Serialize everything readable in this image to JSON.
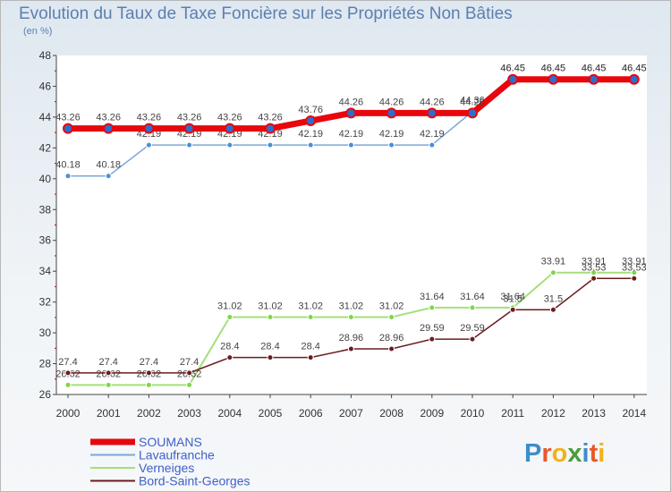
{
  "brand": "Proxiti",
  "chart_data": {
    "type": "line",
    "title": "Evolution du Taux de Taxe Foncière sur les Propriétés Non Bâties",
    "ylabel": "(en %)",
    "xlabel": "",
    "x": [
      "2000",
      "2001",
      "2002",
      "2003",
      "2004",
      "2005",
      "2006",
      "2007",
      "2008",
      "2009",
      "2010",
      "2011",
      "2012",
      "2013",
      "2014"
    ],
    "ylim": [
      26,
      48
    ],
    "yticks": [
      26,
      28,
      30,
      32,
      34,
      36,
      38,
      40,
      42,
      44,
      46,
      48
    ],
    "grid": false,
    "legend_position": "bottom-left",
    "series": [
      {
        "name": "SOUMANS",
        "color": "#e8070d",
        "values": [
          43.26,
          43.26,
          43.26,
          43.26,
          43.26,
          43.26,
          43.76,
          44.26,
          44.26,
          44.26,
          44.26,
          46.45,
          46.45,
          46.45,
          46.45
        ],
        "labels": [
          "43.26",
          "43.26",
          "43.26",
          "43.26",
          "43.26",
          "43.26",
          "43.76",
          "44.26",
          "44.26",
          "44.26",
          "44.26",
          "46.45",
          "46.45",
          "46.45",
          "46.45"
        ]
      },
      {
        "name": "Lavaufranche",
        "color": "#7aa8d8",
        "values": [
          40.18,
          40.18,
          42.19,
          42.19,
          42.19,
          42.19,
          42.19,
          42.19,
          42.19,
          42.19,
          44.36,
          46.45,
          46.45,
          46.45,
          46.45
        ],
        "labels": [
          "40.18",
          "40.18",
          "42.19",
          "42.19",
          "42.19",
          "42.19",
          "42.19",
          "42.19",
          "42.19",
          "42.19",
          "44.36",
          "46.45",
          "46.45",
          "46.45",
          "46.45"
        ]
      },
      {
        "name": "Verneiges",
        "color": "#a3e07a",
        "values": [
          26.62,
          26.62,
          26.62,
          26.62,
          31.02,
          31.02,
          31.02,
          31.02,
          31.02,
          31.64,
          31.64,
          31.64,
          33.91,
          33.91,
          33.91
        ],
        "labels": [
          "26.62",
          "26.62",
          "26.62",
          "26.62",
          "31.02",
          "31.02",
          "31.02",
          "31.02",
          "31.02",
          "31.64",
          "31.64",
          "31.64",
          "33.91",
          "33.91",
          "33.91"
        ]
      },
      {
        "name": "Bord-Saint-Georges",
        "color": "#6b1c1f",
        "values": [
          27.4,
          27.4,
          27.4,
          27.4,
          28.4,
          28.4,
          28.4,
          28.96,
          28.96,
          29.59,
          29.59,
          31.5,
          31.5,
          33.53,
          33.53
        ],
        "labels": [
          "27.4",
          "27.4",
          "27.4",
          "27.4",
          "28.4",
          "28.4",
          "28.4",
          "28.96",
          "28.96",
          "29.59",
          "29.59",
          "31.5",
          "31.5",
          "33.53",
          "33.53"
        ]
      }
    ]
  }
}
